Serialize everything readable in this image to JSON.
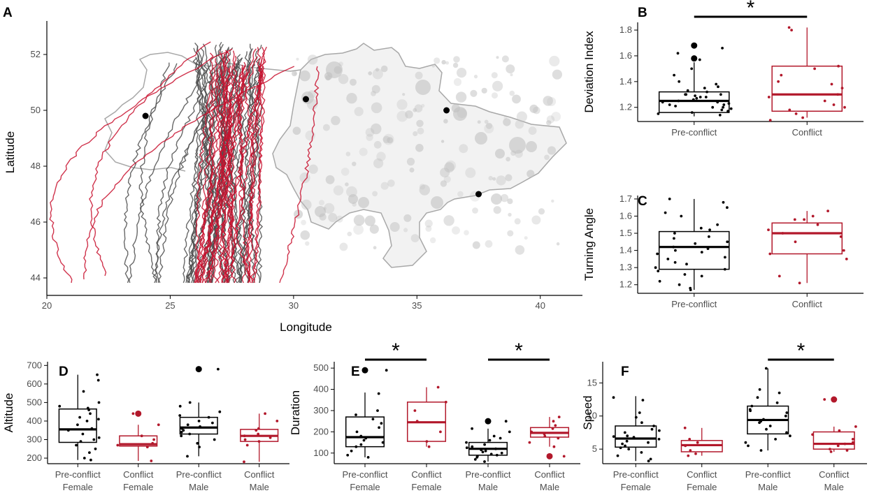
{
  "colors": {
    "pre": "#000000",
    "conflict": "#b2182b",
    "track_grey": "#4d4d4d",
    "track_red": "#c8102e",
    "map_outline": "#a8a8a8",
    "fire": "#c0c0c0"
  },
  "panels": {
    "A": {
      "label": "A"
    },
    "B": {
      "label": "B"
    },
    "C": {
      "label": "C"
    },
    "D": {
      "label": "D"
    },
    "E": {
      "label": "E"
    },
    "F": {
      "label": "F"
    }
  },
  "significance_marker": "*",
  "chart_data": [
    {
      "id": "A",
      "type": "scatter",
      "xlabel": "Longitude",
      "ylabel": "Latitude",
      "xlim": [
        20,
        41
      ],
      "ylim": [
        43.8,
        53.2
      ],
      "xticks": [
        "20",
        "25",
        "30",
        "35",
        "40"
      ],
      "yticks": [
        "44",
        "46",
        "48",
        "50",
        "52"
      ],
      "points": [
        {
          "lon": 24.0,
          "lat": 49.8
        },
        {
          "lon": 30.5,
          "lat": 50.4
        },
        {
          "lon": 36.2,
          "lat": 50.0
        },
        {
          "lon": 37.5,
          "lat": 47.0
        }
      ],
      "series": [
        {
          "name": "Pre-conflict",
          "color": "grey"
        },
        {
          "name": "Conflict",
          "color": "red"
        }
      ]
    },
    {
      "id": "B",
      "type": "box",
      "ylabel": "Deviation Index",
      "ylim": [
        1.09,
        1.86
      ],
      "yticks": [
        "1.2",
        "1.4",
        "1.6",
        "1.8"
      ],
      "categories": [
        "Pre-conflict",
        "Conflict"
      ],
      "boxes": [
        {
          "whisker_low": 1.13,
          "q1": 1.16,
          "median": 1.25,
          "q3": 1.32,
          "whisker_high": 1.55,
          "outliers": [
            1.58,
            1.68
          ],
          "points": [
            1.22,
            1.25,
            1.3,
            1.28,
            1.18,
            1.35,
            1.2,
            1.14,
            1.24,
            1.27,
            1.32,
            1.45,
            1.5,
            1.38,
            1.16,
            1.19,
            1.28,
            1.22,
            1.33,
            1.26,
            1.3,
            1.21,
            1.23,
            1.36,
            1.17,
            1.4,
            1.29,
            1.24,
            1.15,
            1.3,
            1.62,
            1.57,
            1.66,
            1.2
          ]
        },
        {
          "whisker_low": 1.12,
          "q1": 1.17,
          "median": 1.3,
          "q3": 1.52,
          "whisker_high": 1.82,
          "outliers": [],
          "points": [
            1.82,
            1.8,
            1.52,
            1.5,
            1.45,
            1.38,
            1.35,
            1.3,
            1.28,
            1.25,
            1.22,
            1.2,
            1.15,
            1.12,
            1.1,
            1.18,
            1.4
          ]
        }
      ],
      "significance": [
        {
          "from": 0,
          "to": 1,
          "label": "*"
        }
      ]
    },
    {
      "id": "C",
      "type": "box",
      "ylabel": "Turning Angle",
      "ylim": [
        1.15,
        1.72
      ],
      "yticks": [
        "1.2",
        "1.3",
        "1.4",
        "1.5",
        "1.6",
        "1.7"
      ],
      "categories": [
        "Pre-conflict",
        "Conflict"
      ],
      "boxes": [
        {
          "whisker_low": 1.17,
          "q1": 1.29,
          "median": 1.42,
          "q3": 1.51,
          "whisker_high": 1.7,
          "outliers": [],
          "points": [
            1.65,
            1.62,
            1.7,
            1.68,
            1.55,
            1.52,
            1.5,
            1.48,
            1.45,
            1.44,
            1.42,
            1.4,
            1.38,
            1.36,
            1.35,
            1.33,
            1.3,
            1.28,
            1.25,
            1.22,
            1.2,
            1.18,
            1.17,
            1.26,
            1.47,
            1.53,
            1.41,
            1.32,
            1.29,
            1.39,
            1.6
          ]
        },
        {
          "whisker_low": 1.21,
          "q1": 1.38,
          "median": 1.5,
          "q3": 1.56,
          "whisker_high": 1.63,
          "outliers": [],
          "points": [
            1.63,
            1.6,
            1.58,
            1.55,
            1.52,
            1.5,
            1.48,
            1.45,
            1.4,
            1.38,
            1.35,
            1.25,
            1.21,
            1.58
          ]
        }
      ]
    },
    {
      "id": "D",
      "type": "box",
      "ylabel": "Altitude",
      "ylim": [
        170,
        720
      ],
      "yticks": [
        "200",
        "300",
        "400",
        "500",
        "600",
        "700"
      ],
      "categories": [
        "Pre-conflict\nFemale",
        "Conflict\nFemale",
        "Pre-conflict\nMale",
        "Conflict\nMale"
      ],
      "boxes": [
        {
          "whisker_low": 190,
          "q1": 285,
          "median": 355,
          "q3": 465,
          "whisker_high": 650,
          "outliers": [],
          "points": [
            650,
            620,
            500,
            480,
            470,
            460,
            440,
            420,
            400,
            380,
            360,
            350,
            330,
            310,
            300,
            290,
            270,
            250,
            230,
            200,
            190,
            560,
            410
          ]
        },
        {
          "whisker_low": 185,
          "q1": 265,
          "median": 275,
          "q3": 320,
          "whisker_high": 380,
          "outliers": [
            440
          ],
          "points": [
            380,
            320,
            300,
            280,
            270,
            260,
            185,
            440
          ]
        },
        {
          "whisker_low": 210,
          "q1": 330,
          "median": 365,
          "q3": 420,
          "whisker_high": 500,
          "outliers": [
            680
          ],
          "points": [
            680,
            500,
            480,
            450,
            420,
            400,
            380,
            370,
            360,
            350,
            340,
            330,
            320,
            300,
            280,
            260,
            210,
            430,
            390
          ]
        },
        {
          "whisker_low": 180,
          "q1": 290,
          "median": 320,
          "q3": 355,
          "whisker_high": 440,
          "outliers": [],
          "points": [
            440,
            360,
            350,
            330,
            320,
            310,
            300,
            290,
            270,
            180,
            400
          ]
        }
      ]
    },
    {
      "id": "E",
      "type": "box",
      "ylabel": "Duration",
      "ylim": [
        50,
        530
      ],
      "yticks": [
        "100",
        "200",
        "300",
        "400",
        "500"
      ],
      "categories": [
        "Pre-conflict\nFemale",
        "Conflict\nFemale",
        "Pre-conflict\nMale",
        "Conflict\nMale"
      ],
      "boxes": [
        {
          "whisker_low": 80,
          "q1": 130,
          "median": 175,
          "q3": 270,
          "whisker_high": 385,
          "outliers": [
            490
          ],
          "points": [
            490,
            380,
            300,
            280,
            260,
            220,
            200,
            180,
            170,
            160,
            140,
            130,
            110,
            90,
            80,
            240,
            150
          ]
        },
        {
          "whisker_low": 130,
          "q1": 155,
          "median": 245,
          "q3": 340,
          "whisker_high": 410,
          "outliers": [],
          "points": [
            410,
            340,
            300,
            250,
            200,
            155,
            130
          ]
        },
        {
          "whisker_low": 60,
          "q1": 90,
          "median": 120,
          "q3": 150,
          "whisker_high": 215,
          "outliers": [
            250
          ],
          "points": [
            250,
            215,
            200,
            180,
            160,
            150,
            140,
            130,
            125,
            120,
            115,
            110,
            100,
            95,
            90,
            85,
            80,
            70,
            60,
            170,
            105
          ]
        },
        {
          "whisker_low": 130,
          "q1": 175,
          "median": 195,
          "q3": 220,
          "whisker_high": 270,
          "outliers": [
            85
          ],
          "points": [
            270,
            250,
            230,
            215,
            200,
            190,
            180,
            170,
            150,
            130,
            85
          ]
        }
      ],
      "significance": [
        {
          "from": 0,
          "to": 1,
          "label": "*"
        },
        {
          "from": 2,
          "to": 3,
          "label": "*"
        }
      ]
    },
    {
      "id": "F",
      "type": "box",
      "ylabel": "Speed",
      "ylim": [
        2.8,
        18.2
      ],
      "yticks": [
        "5",
        "10",
        "15"
      ],
      "categories": [
        "Pre-conflict\nFemale",
        "Conflict\nFemale",
        "Pre-conflict\nMale",
        "Conflict\nMale"
      ],
      "boxes": [
        {
          "whisker_low": 3.2,
          "q1": 5.3,
          "median": 6.6,
          "q3": 8.5,
          "whisker_high": 13.0,
          "outliers": [],
          "points": [
            12.8,
            12.4,
            10.5,
            9.8,
            9.0,
            8.5,
            8.0,
            7.5,
            7.0,
            6.8,
            6.5,
            6.2,
            6.0,
            5.8,
            5.5,
            5.2,
            5.0,
            4.5,
            4.0,
            3.5,
            3.2,
            7.8,
            6.9
          ]
        },
        {
          "whisker_low": 4.0,
          "q1": 4.6,
          "median": 5.6,
          "q3": 6.3,
          "whisker_high": 8.2,
          "outliers": [],
          "points": [
            8.2,
            6.5,
            6.0,
            5.5,
            4.8,
            4.3,
            4.0
          ]
        },
        {
          "whisker_low": 4.8,
          "q1": 7.3,
          "median": 9.4,
          "q3": 11.5,
          "whisker_high": 17.2,
          "outliers": [],
          "points": [
            17.2,
            14.0,
            13.5,
            12.8,
            12.0,
            11.5,
            11.0,
            10.5,
            10.0,
            9.5,
            9.2,
            9.0,
            8.5,
            8.0,
            7.5,
            7.0,
            6.5,
            6.0,
            5.5,
            4.8,
            10.8
          ]
        },
        {
          "whisker_low": 4.6,
          "q1": 5.0,
          "median": 5.8,
          "q3": 7.6,
          "whisker_high": 8.4,
          "outliers": [
            12.5
          ],
          "points": [
            12.5,
            8.4,
            7.8,
            7.2,
            6.5,
            6.0,
            5.8,
            5.5,
            5.0,
            4.8,
            4.6
          ]
        }
      ],
      "significance": [
        {
          "from": 2,
          "to": 3,
          "label": "*"
        }
      ]
    }
  ]
}
